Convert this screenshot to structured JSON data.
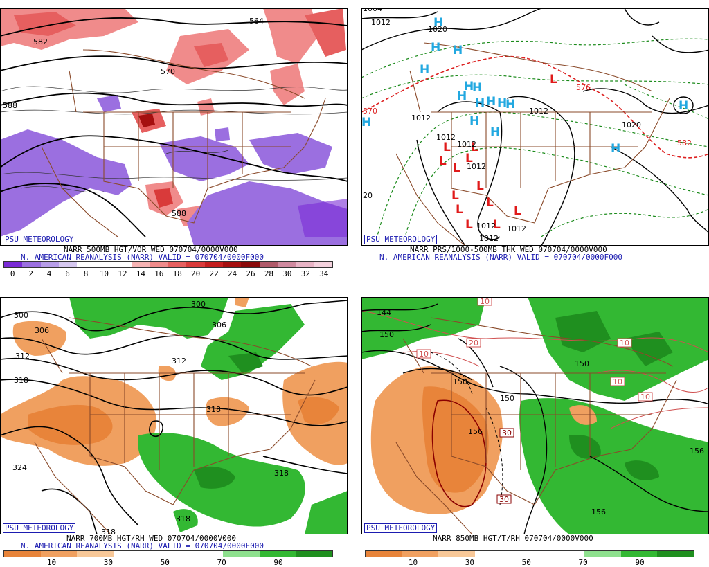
{
  "panels": {
    "p1": {
      "badge": "PSU METEOROLOGY",
      "caption1": "NARR 500MB HGT/VOR WED 070704/0000V000",
      "caption2": "N. AMERICAN REANALYSIS (NARR) VALID = 070704/0000F000",
      "colorbar": {
        "colors": [
          "#7a2bd6",
          "#9b6fe0",
          "#b79de8",
          "#d6c8f0",
          "#ffffff",
          "#ffffff",
          "#ffffff",
          "#f6b3b3",
          "#f08b8b",
          "#e65f5f",
          "#d93a3a",
          "#c41e1e",
          "#a50f0f",
          "#8a0a0a",
          "#b05a6a",
          "#d08aa0",
          "#e8b4c6",
          "#f4d2de"
        ],
        "ticks": [
          "0",
          "2",
          "4",
          "6",
          "8",
          "10",
          "12",
          "14",
          "16",
          "18",
          "20",
          "22",
          "24",
          "26",
          "28",
          "30",
          "32",
          "34"
        ]
      },
      "contour_labels": [
        "564",
        "588",
        "570",
        "588",
        "582"
      ]
    },
    "p2": {
      "badge": "PSU METEOROLOGY",
      "caption1": "NARR PRS/1000-500MB THK WED 070704/0000V000",
      "caption2": "N. AMERICAN REANALYSIS (NARR) VALID = 070704/0000F000",
      "highs": [
        "H",
        "H",
        "H",
        "H",
        "H",
        "H",
        "H",
        "H",
        "H",
        "H",
        "H",
        "H",
        "H",
        "H",
        "H"
      ],
      "lows": [
        "L",
        "L",
        "L",
        "L",
        "L",
        "L",
        "L",
        "L",
        "L",
        "L",
        "L",
        "L",
        "L"
      ],
      "isobar_labels": [
        "1004",
        "1012",
        "1020",
        "1012",
        "1012",
        "1012",
        "1012",
        "1012",
        "1012",
        "1020",
        "1012"
      ],
      "thickness_labels": [
        "570",
        "576",
        "582"
      ],
      "side_label": "20"
    },
    "p3": {
      "badge": "PSU METEOROLOGY",
      "caption1": "NARR 700MB HGT/RH WED 070704/0000V000",
      "caption2": "N. AMERICAN REANALYSIS (NARR) VALID = 070704/0000F000",
      "colorbar": {
        "colors": [
          "#e8843a",
          "#f0a060",
          "#f8c898",
          "#ffffff",
          "#ffffff",
          "#ffffff",
          "#8ee08e",
          "#33b833",
          "#1f8f1f"
        ],
        "ticks": [
          "10",
          "30",
          "50",
          "70",
          "90"
        ]
      },
      "contour_labels": [
        "300",
        "306",
        "312",
        "318",
        "324",
        "300",
        "306",
        "312",
        "318",
        "318",
        "318",
        "318"
      ]
    },
    "p4": {
      "badge": "PSU METEOROLOGY",
      "caption1": "NARR 850MB HGT/T/RH 070704/0000V000",
      "colorbar": {
        "colors": [
          "#e8843a",
          "#f0a060",
          "#f8c898",
          "#ffffff",
          "#ffffff",
          "#ffffff",
          "#8ee08e",
          "#33b833",
          "#1f8f1f"
        ],
        "ticks": [
          "10",
          "30",
          "50",
          "70",
          "90"
        ]
      },
      "contour_labels": [
        "144",
        "150",
        "150",
        "150",
        "150",
        "156",
        "156",
        "156"
      ],
      "temp_labels": [
        "10",
        "20",
        "10",
        "10",
        "10",
        "10",
        "30",
        "30"
      ]
    }
  }
}
